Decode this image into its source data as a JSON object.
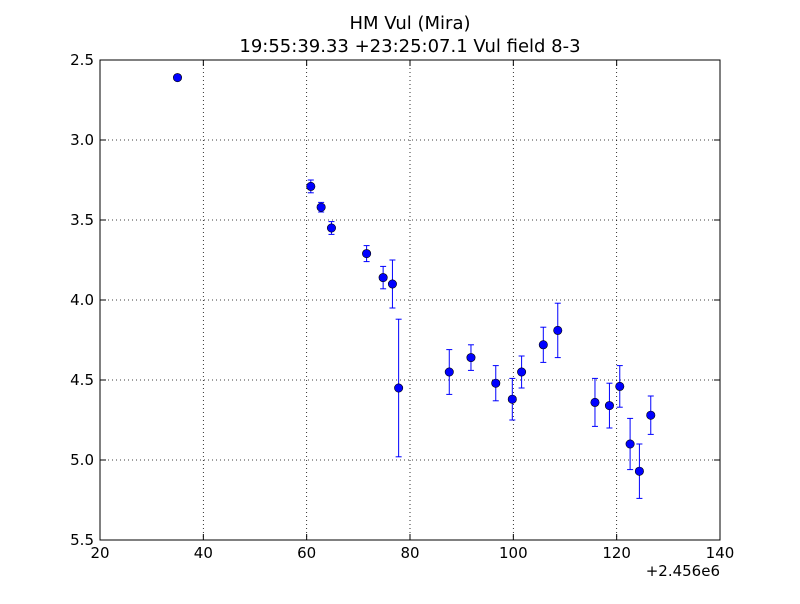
{
  "chart_data": {
    "type": "scatter",
    "title": "HM Vul (Mira)",
    "subtitle": "19:55:39.33 +23:25:07.1 Vul field 8-3",
    "xlabel": "",
    "ylabel": "",
    "x_offset_label": "+2.456e6",
    "xlim": [
      20,
      140
    ],
    "ylim": [
      5.5,
      2.5
    ],
    "y_inverted": true,
    "grid": true,
    "x_ticks": [
      20,
      40,
      60,
      80,
      100,
      120,
      140
    ],
    "x_tick_labels": [
      "20",
      "40",
      "60",
      "80",
      "100",
      "120",
      "140"
    ],
    "y_ticks": [
      2.5,
      3.0,
      3.5,
      4.0,
      4.5,
      5.0,
      5.5
    ],
    "y_tick_labels": [
      "2.5",
      "3.0",
      "3.5",
      "4.0",
      "4.5",
      "5.0",
      "5.5"
    ],
    "marker_color": "#0000ff",
    "series": [
      {
        "points": [
          {
            "x": 35.0,
            "y": 2.61,
            "err": 0.0
          },
          {
            "x": 60.8,
            "y": 3.29,
            "err": 0.04
          },
          {
            "x": 62.8,
            "y": 3.42,
            "err": 0.03
          },
          {
            "x": 64.8,
            "y": 3.55,
            "err": 0.04
          },
          {
            "x": 71.6,
            "y": 3.71,
            "err": 0.05
          },
          {
            "x": 74.8,
            "y": 3.86,
            "err": 0.07
          },
          {
            "x": 76.6,
            "y": 3.9,
            "err": 0.15
          },
          {
            "x": 77.8,
            "y": 4.55,
            "err": 0.43
          },
          {
            "x": 87.6,
            "y": 4.45,
            "err": 0.14
          },
          {
            "x": 91.8,
            "y": 4.36,
            "err": 0.08
          },
          {
            "x": 96.6,
            "y": 4.52,
            "err": 0.11
          },
          {
            "x": 99.8,
            "y": 4.62,
            "err": 0.13
          },
          {
            "x": 101.6,
            "y": 4.45,
            "err": 0.1
          },
          {
            "x": 105.8,
            "y": 4.28,
            "err": 0.11
          },
          {
            "x": 108.6,
            "y": 4.19,
            "err": 0.17
          },
          {
            "x": 115.8,
            "y": 4.64,
            "err": 0.15
          },
          {
            "x": 118.6,
            "y": 4.66,
            "err": 0.14
          },
          {
            "x": 120.6,
            "y": 4.54,
            "err": 0.13
          },
          {
            "x": 122.6,
            "y": 4.9,
            "err": 0.16
          },
          {
            "x": 124.4,
            "y": 5.07,
            "err": 0.17
          },
          {
            "x": 126.6,
            "y": 4.72,
            "err": 0.12
          }
        ]
      }
    ]
  }
}
